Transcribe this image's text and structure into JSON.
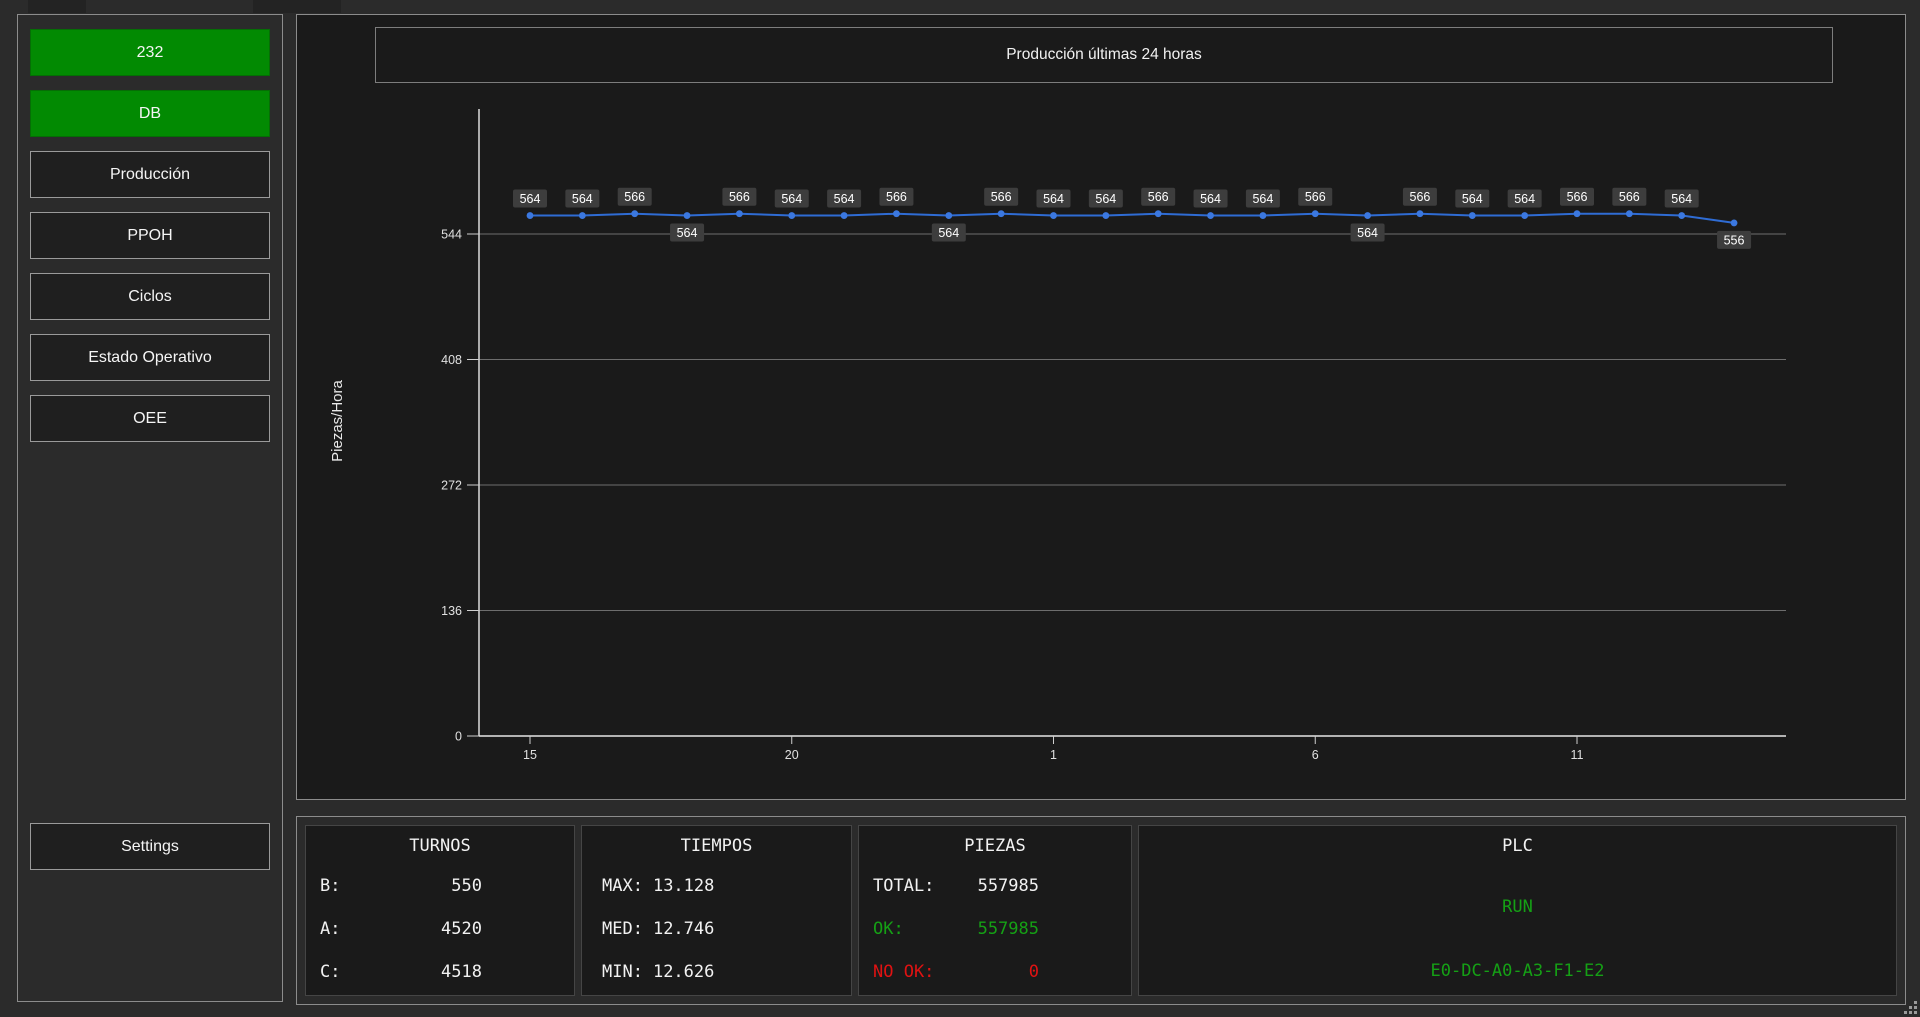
{
  "sidebar": {
    "buttons": [
      {
        "label": "232",
        "style": "green"
      },
      {
        "label": "DB",
        "style": "green"
      },
      {
        "label": "Producción",
        "style": "normal"
      },
      {
        "label": "PPOH",
        "style": "normal"
      },
      {
        "label": "Ciclos",
        "style": "normal"
      },
      {
        "label": "Estado Operativo",
        "style": "normal"
      },
      {
        "label": "OEE",
        "style": "normal"
      }
    ],
    "settings_label": "Settings"
  },
  "chart_data": {
    "type": "line",
    "title": "Producción últimas 24 horas",
    "ylabel": "Piezas/Hora",
    "xlabel": "",
    "x": [
      15,
      16,
      17,
      18,
      19,
      20,
      21,
      22,
      23,
      0,
      1,
      2,
      3,
      4,
      5,
      6,
      7,
      8,
      9,
      10,
      11,
      12,
      13,
      14
    ],
    "values": [
      564,
      564,
      566,
      564,
      566,
      564,
      564,
      566,
      564,
      566,
      564,
      564,
      566,
      564,
      564,
      566,
      564,
      566,
      564,
      564,
      566,
      566,
      564,
      556
    ],
    "label_pos": [
      "above",
      "above",
      "above",
      "below",
      "above",
      "above",
      "above",
      "above",
      "below",
      "above",
      "above",
      "above",
      "above",
      "above",
      "above",
      "above",
      "below",
      "above",
      "above",
      "above",
      "above",
      "above",
      "above",
      "below"
    ],
    "x_ticks": [
      15,
      20,
      1,
      6,
      11
    ],
    "y_ticks": [
      0,
      136,
      272,
      408,
      544
    ],
    "ylim": [
      0,
      678
    ],
    "grid": true,
    "legend": "none",
    "line_color": "#2f6cd4",
    "point_color": "#3b78e0",
    "label_bg": "#3d3d3d"
  },
  "panels": {
    "turnos": {
      "title": "TURNOS",
      "rows": [
        {
          "label": "B:",
          "value": "550"
        },
        {
          "label": "A:",
          "value": "4520"
        },
        {
          "label": "C:",
          "value": "4518"
        }
      ]
    },
    "tiempos": {
      "title": "TIEMPOS",
      "rows": [
        {
          "label": "MAX:",
          "value": "13.128"
        },
        {
          "label": "MED:",
          "value": "12.746"
        },
        {
          "label": "MIN:",
          "value": "12.626"
        }
      ]
    },
    "piezas": {
      "title": "PIEZAS",
      "rows": [
        {
          "label": "TOTAL:",
          "value": "557985",
          "tone": "white"
        },
        {
          "label": "OK:",
          "value": "557985",
          "tone": "green"
        },
        {
          "label": "NO OK:",
          "value": "0",
          "tone": "red"
        }
      ]
    },
    "plc": {
      "title": "PLC",
      "status": "RUN",
      "mac": "E0-DC-A0-A3-F1-E2"
    }
  },
  "colors": {
    "background": "#2b2b2b",
    "panel_dark": "#1a1a1a",
    "button_green": "#028a02",
    "ok_green": "#15a015",
    "alarm_red": "#e01212",
    "line_blue": "#2f6cd4"
  }
}
